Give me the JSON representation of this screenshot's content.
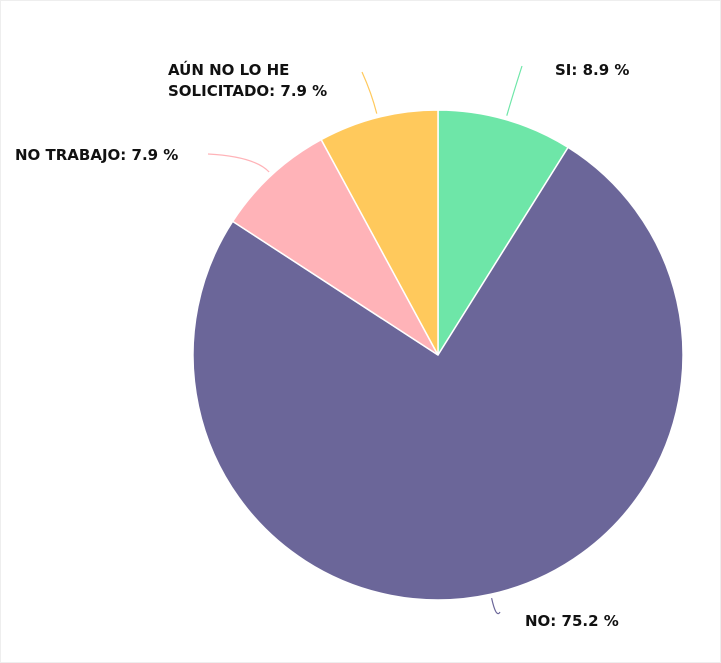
{
  "chart_data": {
    "type": "pie",
    "values": [
      8.9,
      75.2,
      7.9,
      7.9
    ],
    "value_labels": [
      "SI: 8.9 %",
      "NO: 75.2 %",
      "NO TRABAJO: 7.9 %",
      "AÚN NO LO HE SOLICITADO: 7.9 %"
    ],
    "colors": [
      "#6ee6a8",
      "#6b6699",
      "#ffb3b8",
      "#ffc95c"
    ]
  }
}
